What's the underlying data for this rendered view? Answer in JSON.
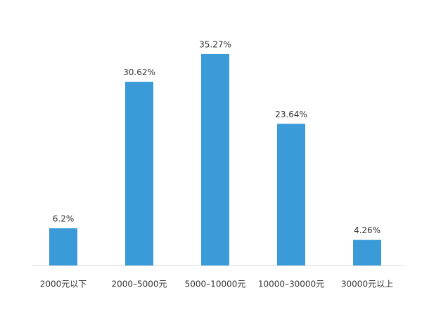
{
  "chart_data": {
    "type": "bar",
    "categories": [
      "2000元以下",
      "2000–5000元",
      "5000–10000元",
      "10000–30000元",
      "30000元以上"
    ],
    "values": [
      6.2,
      30.62,
      35.27,
      23.64,
      4.26
    ],
    "value_labels": [
      "6.2%",
      "30.62%",
      "35.27%",
      "23.64%",
      "4.26%"
    ],
    "color": "#3b9bd9"
  }
}
